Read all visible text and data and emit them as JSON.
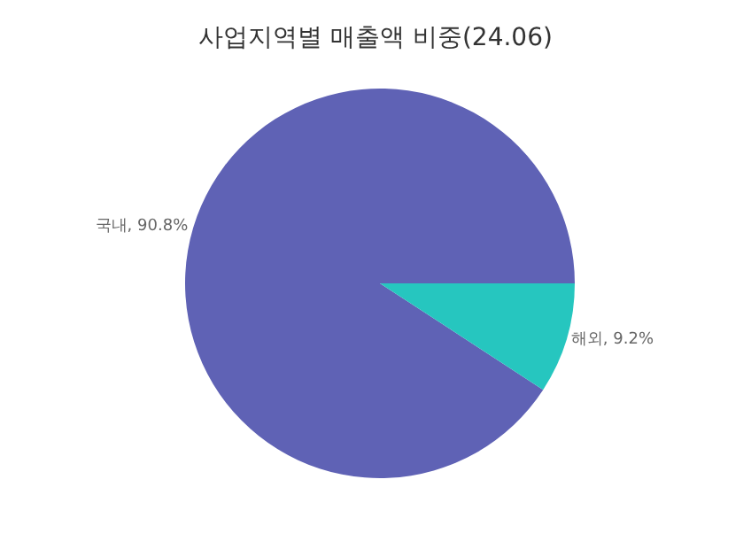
{
  "chart_data": {
    "type": "pie",
    "title": "사업지역별 매출액 비중(24.06)",
    "categories": [
      "국내",
      "해외"
    ],
    "values": [
      90.8,
      9.2
    ],
    "value_labels": [
      "90.8%",
      "9.2%"
    ],
    "colors": [
      "#5f62b5",
      "#26c6bf"
    ],
    "legend": false
  }
}
